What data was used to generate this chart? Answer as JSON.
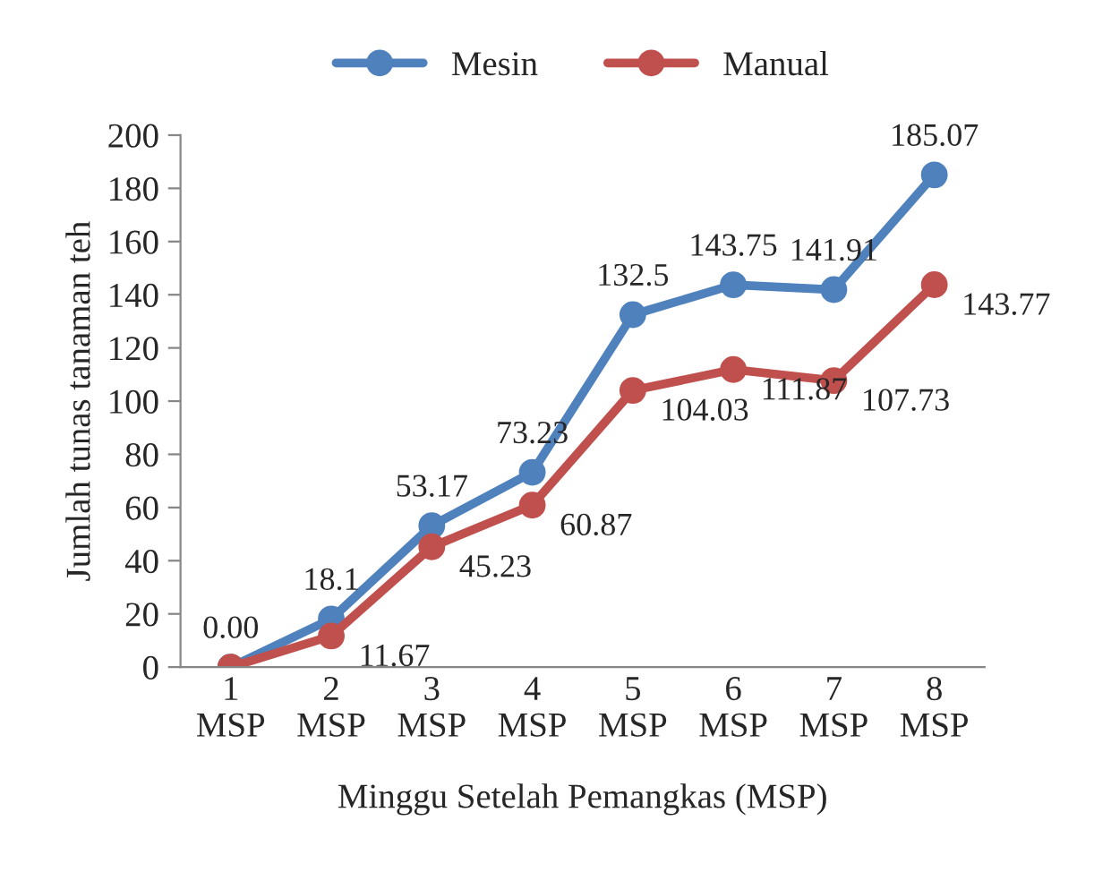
{
  "chart_data": {
    "type": "line",
    "xlabel": "Minggu Setelah Pemangkas (MSP)",
    "ylabel": "Jumlah tunas tanaman teh",
    "categories": [
      "1\nMSP",
      "2\nMSP",
      "3\nMSP",
      "4\nMSP",
      "5\nMSP",
      "6\nMSP",
      "7\nMSP",
      "8\nMSP"
    ],
    "series": [
      {
        "name": "Mesin",
        "color": "#4f81bd",
        "values": [
          0,
          18.1,
          53.17,
          73.23,
          132.5,
          143.75,
          141.91,
          185.07
        ],
        "value_labels": [
          "0.00",
          "18.1",
          "53.17",
          "73.23",
          "132.5",
          "143.75",
          "141.91",
          "185.07"
        ]
      },
      {
        "name": "Manual",
        "color": "#c0504d",
        "values": [
          0,
          11.67,
          45.23,
          60.87,
          104.03,
          111.87,
          107.73,
          143.77
        ],
        "value_labels": [
          null,
          "11.67",
          "45.23",
          "60.87",
          "104.03",
          "111.87",
          "107.73",
          "143.77"
        ]
      }
    ],
    "ylim": [
      0,
      200
    ],
    "yticks": [
      0,
      20,
      40,
      60,
      80,
      100,
      120,
      140,
      160,
      180,
      200
    ],
    "grid": false,
    "legend": "top",
    "marker": "circle",
    "line_style": "solid"
  }
}
